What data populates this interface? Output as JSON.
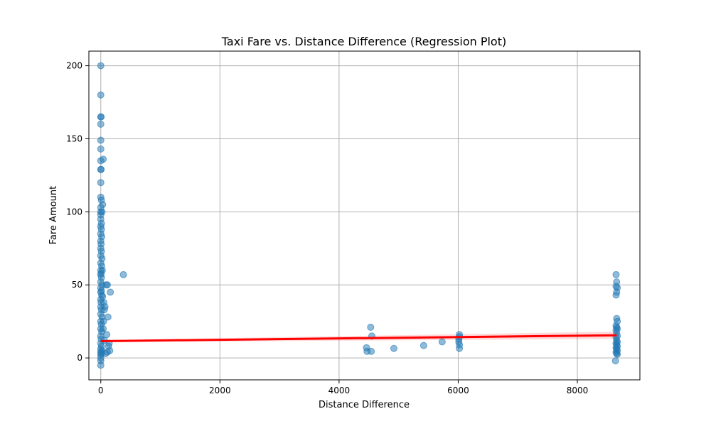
{
  "chart_data": {
    "type": "scatter",
    "title": "Taxi Fare vs. Distance Difference (Regression Plot)",
    "xlabel": "Distance Difference",
    "ylabel": "Fare Amount",
    "xlim": [
      -200,
      9050
    ],
    "ylim": [
      -15,
      210
    ],
    "xticks": [
      0,
      2000,
      4000,
      6000,
      8000
    ],
    "yticks": [
      0,
      50,
      100,
      150,
      200
    ],
    "grid": true,
    "point_color": "#1f77b4",
    "line_color": "#ff0000",
    "points": [
      [
        0,
        200
      ],
      [
        0,
        180
      ],
      [
        0,
        165
      ],
      [
        5,
        165
      ],
      [
        0,
        160
      ],
      [
        0,
        149
      ],
      [
        0,
        143
      ],
      [
        0,
        135
      ],
      [
        40,
        136
      ],
      [
        0,
        129
      ],
      [
        5,
        129
      ],
      [
        0,
        120
      ],
      [
        0,
        110
      ],
      [
        10,
        108
      ],
      [
        0,
        103
      ],
      [
        30,
        105
      ],
      [
        0,
        100
      ],
      [
        20,
        100
      ],
      [
        0,
        98
      ],
      [
        0,
        95
      ],
      [
        10,
        92
      ],
      [
        0,
        90
      ],
      [
        10,
        88
      ],
      [
        0,
        85
      ],
      [
        15,
        83
      ],
      [
        0,
        80
      ],
      [
        5,
        78
      ],
      [
        0,
        75
      ],
      [
        10,
        73
      ],
      [
        0,
        70
      ],
      [
        20,
        68
      ],
      [
        0,
        65
      ],
      [
        15,
        63
      ],
      [
        0,
        60
      ],
      [
        5,
        58
      ],
      [
        0,
        57
      ],
      [
        10,
        55
      ],
      [
        0,
        52
      ],
      [
        20,
        50
      ],
      [
        0,
        48
      ],
      [
        10,
        46
      ],
      [
        0,
        45
      ],
      [
        15,
        43
      ],
      [
        0,
        40
      ],
      [
        5,
        38
      ],
      [
        0,
        35
      ],
      [
        10,
        33
      ],
      [
        0,
        30
      ],
      [
        20,
        28
      ],
      [
        0,
        25
      ],
      [
        10,
        23
      ],
      [
        0,
        20
      ],
      [
        15,
        18
      ],
      [
        0,
        15
      ],
      [
        5,
        13
      ],
      [
        0,
        10
      ],
      [
        10,
        8
      ],
      [
        0,
        6
      ],
      [
        20,
        5
      ],
      [
        0,
        4
      ],
      [
        10,
        3
      ],
      [
        0,
        2
      ],
      [
        0,
        0
      ],
      [
        0,
        -2
      ],
      [
        0,
        -5
      ],
      [
        380,
        57
      ],
      [
        90,
        50
      ],
      [
        110,
        50
      ],
      [
        70,
        35
      ],
      [
        60,
        33
      ],
      [
        160,
        45
      ],
      [
        120,
        28
      ],
      [
        100,
        16
      ],
      [
        140,
        10
      ],
      [
        130,
        8
      ],
      [
        150,
        5
      ],
      [
        110,
        4
      ],
      [
        80,
        3
      ],
      [
        60,
        12
      ],
      [
        40,
        20
      ],
      [
        30,
        42
      ],
      [
        50,
        38
      ],
      [
        25,
        60
      ],
      [
        45,
        25
      ],
      [
        4530,
        21
      ],
      [
        4550,
        15
      ],
      [
        4460,
        7
      ],
      [
        4470,
        4.5
      ],
      [
        4540,
        4.5
      ],
      [
        4920,
        6.5
      ],
      [
        5420,
        8.5
      ],
      [
        5730,
        11
      ],
      [
        6020,
        16
      ],
      [
        6020,
        14.5
      ],
      [
        6010,
        11
      ],
      [
        6020,
        9
      ],
      [
        6020,
        6.5
      ],
      [
        6010,
        13
      ],
      [
        8650,
        57
      ],
      [
        8660,
        52
      ],
      [
        8650,
        49
      ],
      [
        8670,
        48
      ],
      [
        8660,
        45
      ],
      [
        8650,
        43
      ],
      [
        8660,
        27
      ],
      [
        8670,
        25
      ],
      [
        8650,
        22
      ],
      [
        8660,
        21
      ],
      [
        8670,
        20
      ],
      [
        8650,
        19
      ],
      [
        8660,
        17
      ],
      [
        8670,
        15
      ],
      [
        8650,
        14
      ],
      [
        8660,
        12
      ],
      [
        8670,
        11
      ],
      [
        8650,
        10
      ],
      [
        8660,
        9
      ],
      [
        8670,
        8
      ],
      [
        8650,
        7
      ],
      [
        8660,
        6
      ],
      [
        8670,
        5
      ],
      [
        8650,
        4
      ],
      [
        8660,
        3
      ],
      [
        8670,
        2.5
      ],
      [
        8640,
        -2
      ]
    ],
    "regression": {
      "x": [
        0,
        8660
      ],
      "y": [
        11.5,
        15.5
      ],
      "ci_end": 2.5
    }
  }
}
